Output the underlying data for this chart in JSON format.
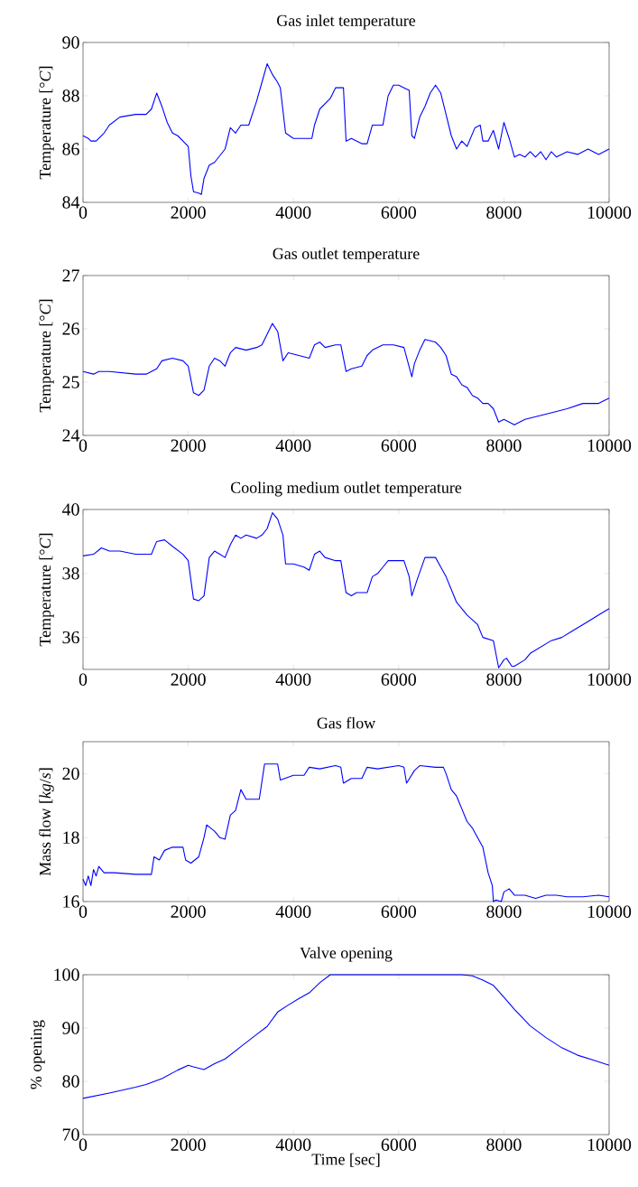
{
  "chart_data": [
    {
      "type": "line",
      "title": "Gas inlet temperature",
      "ylabel": "Temperature [°*C*]",
      "xlim": [
        0,
        10000
      ],
      "xticks": [
        0,
        2000,
        4000,
        6000,
        8000,
        10000
      ],
      "ylim": [
        84,
        90
      ],
      "yticks": [
        84,
        86,
        88,
        90
      ],
      "x": [
        0,
        100,
        150,
        250,
        400,
        500,
        700,
        1000,
        1200,
        1300,
        1400,
        1500,
        1600,
        1700,
        1800,
        1900,
        2000,
        2050,
        2100,
        2200,
        2250,
        2300,
        2400,
        2500,
        2700,
        2800,
        2900,
        3000,
        3150,
        3300,
        3400,
        3500,
        3600,
        3700,
        3750,
        3850,
        4000,
        4200,
        4350,
        4400,
        4500,
        4700,
        4800,
        4950,
        5000,
        5100,
        5300,
        5400,
        5500,
        5700,
        5800,
        5900,
        6000,
        6100,
        6200,
        6250,
        6300,
        6400,
        6500,
        6600,
        6700,
        6800,
        6900,
        7000,
        7100,
        7200,
        7300,
        7450,
        7550,
        7600,
        7700,
        7800,
        7900,
        8000,
        8100,
        8200,
        8300,
        8400,
        8500,
        8600,
        8700,
        8800,
        8900,
        9000,
        9200,
        9400,
        9600,
        9800,
        10000
      ],
      "series": [
        {
          "color": "#0000ff",
          "values": [
            86.5,
            86.4,
            86.3,
            86.3,
            86.6,
            86.9,
            87.2,
            87.3,
            87.3,
            87.5,
            88.1,
            87.6,
            87.0,
            86.6,
            86.5,
            86.3,
            86.1,
            85.0,
            84.4,
            84.35,
            84.3,
            84.9,
            85.4,
            85.5,
            86.0,
            86.8,
            86.6,
            86.9,
            86.9,
            87.8,
            88.5,
            89.2,
            88.8,
            88.5,
            88.3,
            86.6,
            86.4,
            86.4,
            86.4,
            86.9,
            87.5,
            87.9,
            88.3,
            88.3,
            86.3,
            86.4,
            86.2,
            86.2,
            86.9,
            86.9,
            88.0,
            88.4,
            88.4,
            88.3,
            88.2,
            86.5,
            86.4,
            87.2,
            87.6,
            88.1,
            88.4,
            88.1,
            87.3,
            86.5,
            86.0,
            86.3,
            86.1,
            86.8,
            86.9,
            86.3,
            86.3,
            86.7,
            86.0,
            87.0,
            86.4,
            85.7,
            85.8,
            85.7,
            85.9,
            85.7,
            85.9,
            85.6,
            85.9,
            85.7,
            85.9,
            85.8,
            86.0,
            85.8,
            86.0
          ]
        }
      ]
    },
    {
      "type": "line",
      "title": "Gas outlet temperature",
      "ylabel": "Temperature [°*C*]",
      "xlim": [
        0,
        10000
      ],
      "xticks": [
        0,
        2000,
        4000,
        6000,
        8000,
        10000
      ],
      "ylim": [
        24,
        27
      ],
      "yticks": [
        24,
        25,
        26,
        27
      ],
      "x": [
        0,
        200,
        300,
        500,
        1000,
        1200,
        1400,
        1500,
        1700,
        1900,
        2000,
        2100,
        2200,
        2300,
        2400,
        2500,
        2600,
        2700,
        2800,
        2900,
        3100,
        3300,
        3400,
        3500,
        3600,
        3700,
        3800,
        3900,
        4100,
        4300,
        4400,
        4500,
        4600,
        4800,
        4900,
        5000,
        5100,
        5300,
        5400,
        5500,
        5700,
        5900,
        6100,
        6250,
        6300,
        6400,
        6500,
        6700,
        6800,
        6900,
        7000,
        7100,
        7200,
        7300,
        7400,
        7500,
        7600,
        7700,
        7800,
        7900,
        8000,
        8200,
        8400,
        8600,
        8800,
        9000,
        9200,
        9500,
        9800,
        10000
      ],
      "series": [
        {
          "color": "#0000ff",
          "values": [
            25.2,
            25.15,
            25.2,
            25.2,
            25.15,
            25.15,
            25.25,
            25.4,
            25.45,
            25.4,
            25.3,
            24.8,
            24.75,
            24.85,
            25.3,
            25.45,
            25.4,
            25.3,
            25.55,
            25.65,
            25.6,
            25.65,
            25.7,
            25.9,
            26.1,
            25.95,
            25.4,
            25.55,
            25.5,
            25.45,
            25.7,
            25.75,
            25.65,
            25.7,
            25.7,
            25.2,
            25.25,
            25.3,
            25.5,
            25.6,
            25.7,
            25.7,
            25.65,
            25.1,
            25.35,
            25.6,
            25.8,
            25.75,
            25.65,
            25.5,
            25.15,
            25.1,
            24.95,
            24.9,
            24.75,
            24.7,
            24.6,
            24.6,
            24.5,
            24.25,
            24.3,
            24.2,
            24.3,
            24.35,
            24.4,
            24.45,
            24.5,
            24.6,
            24.6,
            24.7
          ]
        }
      ]
    },
    {
      "type": "line",
      "title": "Cooling medium outlet temperature",
      "ylabel": "Temperature [°*C*]",
      "xlim": [
        0,
        10000
      ],
      "xticks": [
        0,
        2000,
        4000,
        6000,
        8000,
        10000
      ],
      "ylim": [
        35,
        40
      ],
      "yticks": [
        36,
        38,
        40
      ],
      "x": [
        0,
        200,
        350,
        500,
        700,
        1000,
        1300,
        1400,
        1550,
        1700,
        1900,
        2000,
        2100,
        2200,
        2300,
        2400,
        2500,
        2600,
        2700,
        2800,
        2900,
        3000,
        3100,
        3300,
        3400,
        3500,
        3600,
        3700,
        3800,
        3850,
        4000,
        4200,
        4300,
        4400,
        4500,
        4600,
        4800,
        4900,
        5000,
        5100,
        5200,
        5400,
        5500,
        5600,
        5700,
        5800,
        6000,
        6100,
        6200,
        6250,
        6350,
        6500,
        6700,
        6800,
        6900,
        7000,
        7100,
        7300,
        7500,
        7600,
        7800,
        7900,
        8000,
        8050,
        8150,
        8200,
        8400,
        8500,
        8700,
        8900,
        9100,
        9300,
        9600,
        9800,
        10000
      ],
      "series": [
        {
          "color": "#0000ff",
          "values": [
            38.55,
            38.6,
            38.8,
            38.7,
            38.7,
            38.6,
            38.6,
            39.0,
            39.05,
            38.85,
            38.6,
            38.4,
            37.2,
            37.15,
            37.3,
            38.5,
            38.7,
            38.6,
            38.5,
            38.9,
            39.2,
            39.1,
            39.2,
            39.1,
            39.2,
            39.4,
            39.9,
            39.7,
            39.2,
            38.3,
            38.3,
            38.2,
            38.1,
            38.6,
            38.7,
            38.5,
            38.4,
            38.4,
            37.4,
            37.3,
            37.4,
            37.4,
            37.9,
            38.0,
            38.2,
            38.4,
            38.4,
            38.4,
            37.9,
            37.3,
            37.8,
            38.5,
            38.5,
            38.2,
            37.9,
            37.5,
            37.1,
            36.7,
            36.4,
            36.0,
            35.9,
            35.05,
            35.3,
            35.35,
            35.1,
            35.1,
            35.3,
            35.5,
            35.7,
            35.9,
            36.0,
            36.2,
            36.5,
            36.7,
            36.9
          ]
        }
      ]
    },
    {
      "type": "line",
      "title": "Gas flow",
      "ylabel": "Mass flow [*kg*/*s*]",
      "xlim": [
        0,
        10000
      ],
      "xticks": [
        0,
        2000,
        4000,
        6000,
        8000,
        10000
      ],
      "ylim": [
        16,
        21
      ],
      "yticks": [
        16,
        18,
        20
      ],
      "x": [
        0,
        50,
        100,
        150,
        200,
        250,
        300,
        400,
        600,
        1000,
        1300,
        1350,
        1450,
        1550,
        1700,
        1900,
        1950,
        2050,
        2200,
        2300,
        2350,
        2500,
        2600,
        2700,
        2800,
        2900,
        3000,
        3100,
        3350,
        3450,
        3700,
        3750,
        4000,
        4200,
        4300,
        4500,
        4800,
        4900,
        4950,
        5100,
        5300,
        5400,
        5600,
        6000,
        6100,
        6150,
        6300,
        6400,
        6700,
        6850,
        6900,
        7000,
        7100,
        7200,
        7300,
        7400,
        7500,
        7600,
        7700,
        7780,
        7800,
        7850,
        7950,
        8000,
        8100,
        8200,
        8400,
        8600,
        8800,
        9000,
        9200,
        9500,
        9800,
        10000
      ],
      "series": [
        {
          "color": "#0000ff",
          "values": [
            16.7,
            16.5,
            16.8,
            16.5,
            17.0,
            16.8,
            17.1,
            16.9,
            16.9,
            16.85,
            16.85,
            17.4,
            17.3,
            17.6,
            17.7,
            17.7,
            17.3,
            17.2,
            17.4,
            18.0,
            18.4,
            18.2,
            18.0,
            17.95,
            18.7,
            18.85,
            19.5,
            19.2,
            19.2,
            20.3,
            20.3,
            19.8,
            19.95,
            19.95,
            20.2,
            20.15,
            20.25,
            20.2,
            19.7,
            19.85,
            19.85,
            20.2,
            20.15,
            20.25,
            20.2,
            19.7,
            20.1,
            20.25,
            20.2,
            20.2,
            20.0,
            19.5,
            19.3,
            18.9,
            18.5,
            18.3,
            18.0,
            17.7,
            16.9,
            16.5,
            16.0,
            16.05,
            16.0,
            16.3,
            16.4,
            16.2,
            16.2,
            16.1,
            16.2,
            16.2,
            16.15,
            16.15,
            16.2,
            16.15
          ]
        }
      ]
    },
    {
      "type": "line",
      "title": "Valve opening",
      "xlabel": "Time [sec]",
      "ylabel": "% opening",
      "xlim": [
        0,
        10000
      ],
      "xticks": [
        0,
        2000,
        4000,
        6000,
        8000,
        10000
      ],
      "ylim": [
        70,
        100
      ],
      "yticks": [
        70,
        80,
        90,
        100
      ],
      "x": [
        0,
        500,
        1000,
        1200,
        1500,
        1800,
        2000,
        2100,
        2300,
        2500,
        2700,
        3000,
        3300,
        3500,
        3700,
        3900,
        4100,
        4300,
        4500,
        4700,
        7200,
        7400,
        7600,
        7800,
        8000,
        8200,
        8500,
        8800,
        9100,
        9400,
        9700,
        10000
      ],
      "series": [
        {
          "color": "#0000ff",
          "values": [
            76.8,
            77.8,
            78.9,
            79.4,
            80.5,
            82.1,
            83.0,
            82.7,
            82.2,
            83.3,
            84.2,
            86.5,
            88.8,
            90.3,
            93.0,
            94.3,
            95.5,
            96.6,
            98.5,
            100,
            100,
            99.8,
            99.0,
            98.0,
            95.8,
            93.5,
            90.4,
            88.2,
            86.3,
            84.9,
            84.0,
            83.0
          ]
        }
      ]
    }
  ]
}
